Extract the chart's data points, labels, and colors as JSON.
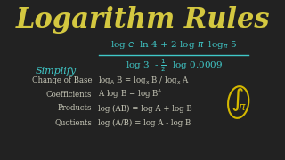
{
  "bg_color": "#222222",
  "title": "Logarithm Rules",
  "title_color": "#d4c840",
  "title_fontsize": 22,
  "cyan_color": "#40c8c8",
  "simplify_color": "#40c8c8",
  "simplify_label": "Simplify",
  "numerator": "log e  ln 4 + 2 log π log",
  "num_sub": "π",
  "num_end": "5",
  "denominator": "log 3  - ½  log 0.0009",
  "rule_label_color": "#c8c8b8",
  "rule_formula_color": "#c8c8b8",
  "logo_color": "#d4b800",
  "rules_labels": [
    "Change of Base",
    "Coefficients",
    "Products",
    "Quotients"
  ],
  "rules_formulas": [
    "logₐ B = logₓ B / logₓ A",
    "A log B = log Bᴬ",
    "log (AB) = log A + log B",
    "log (A/B) = log A - log B"
  ]
}
